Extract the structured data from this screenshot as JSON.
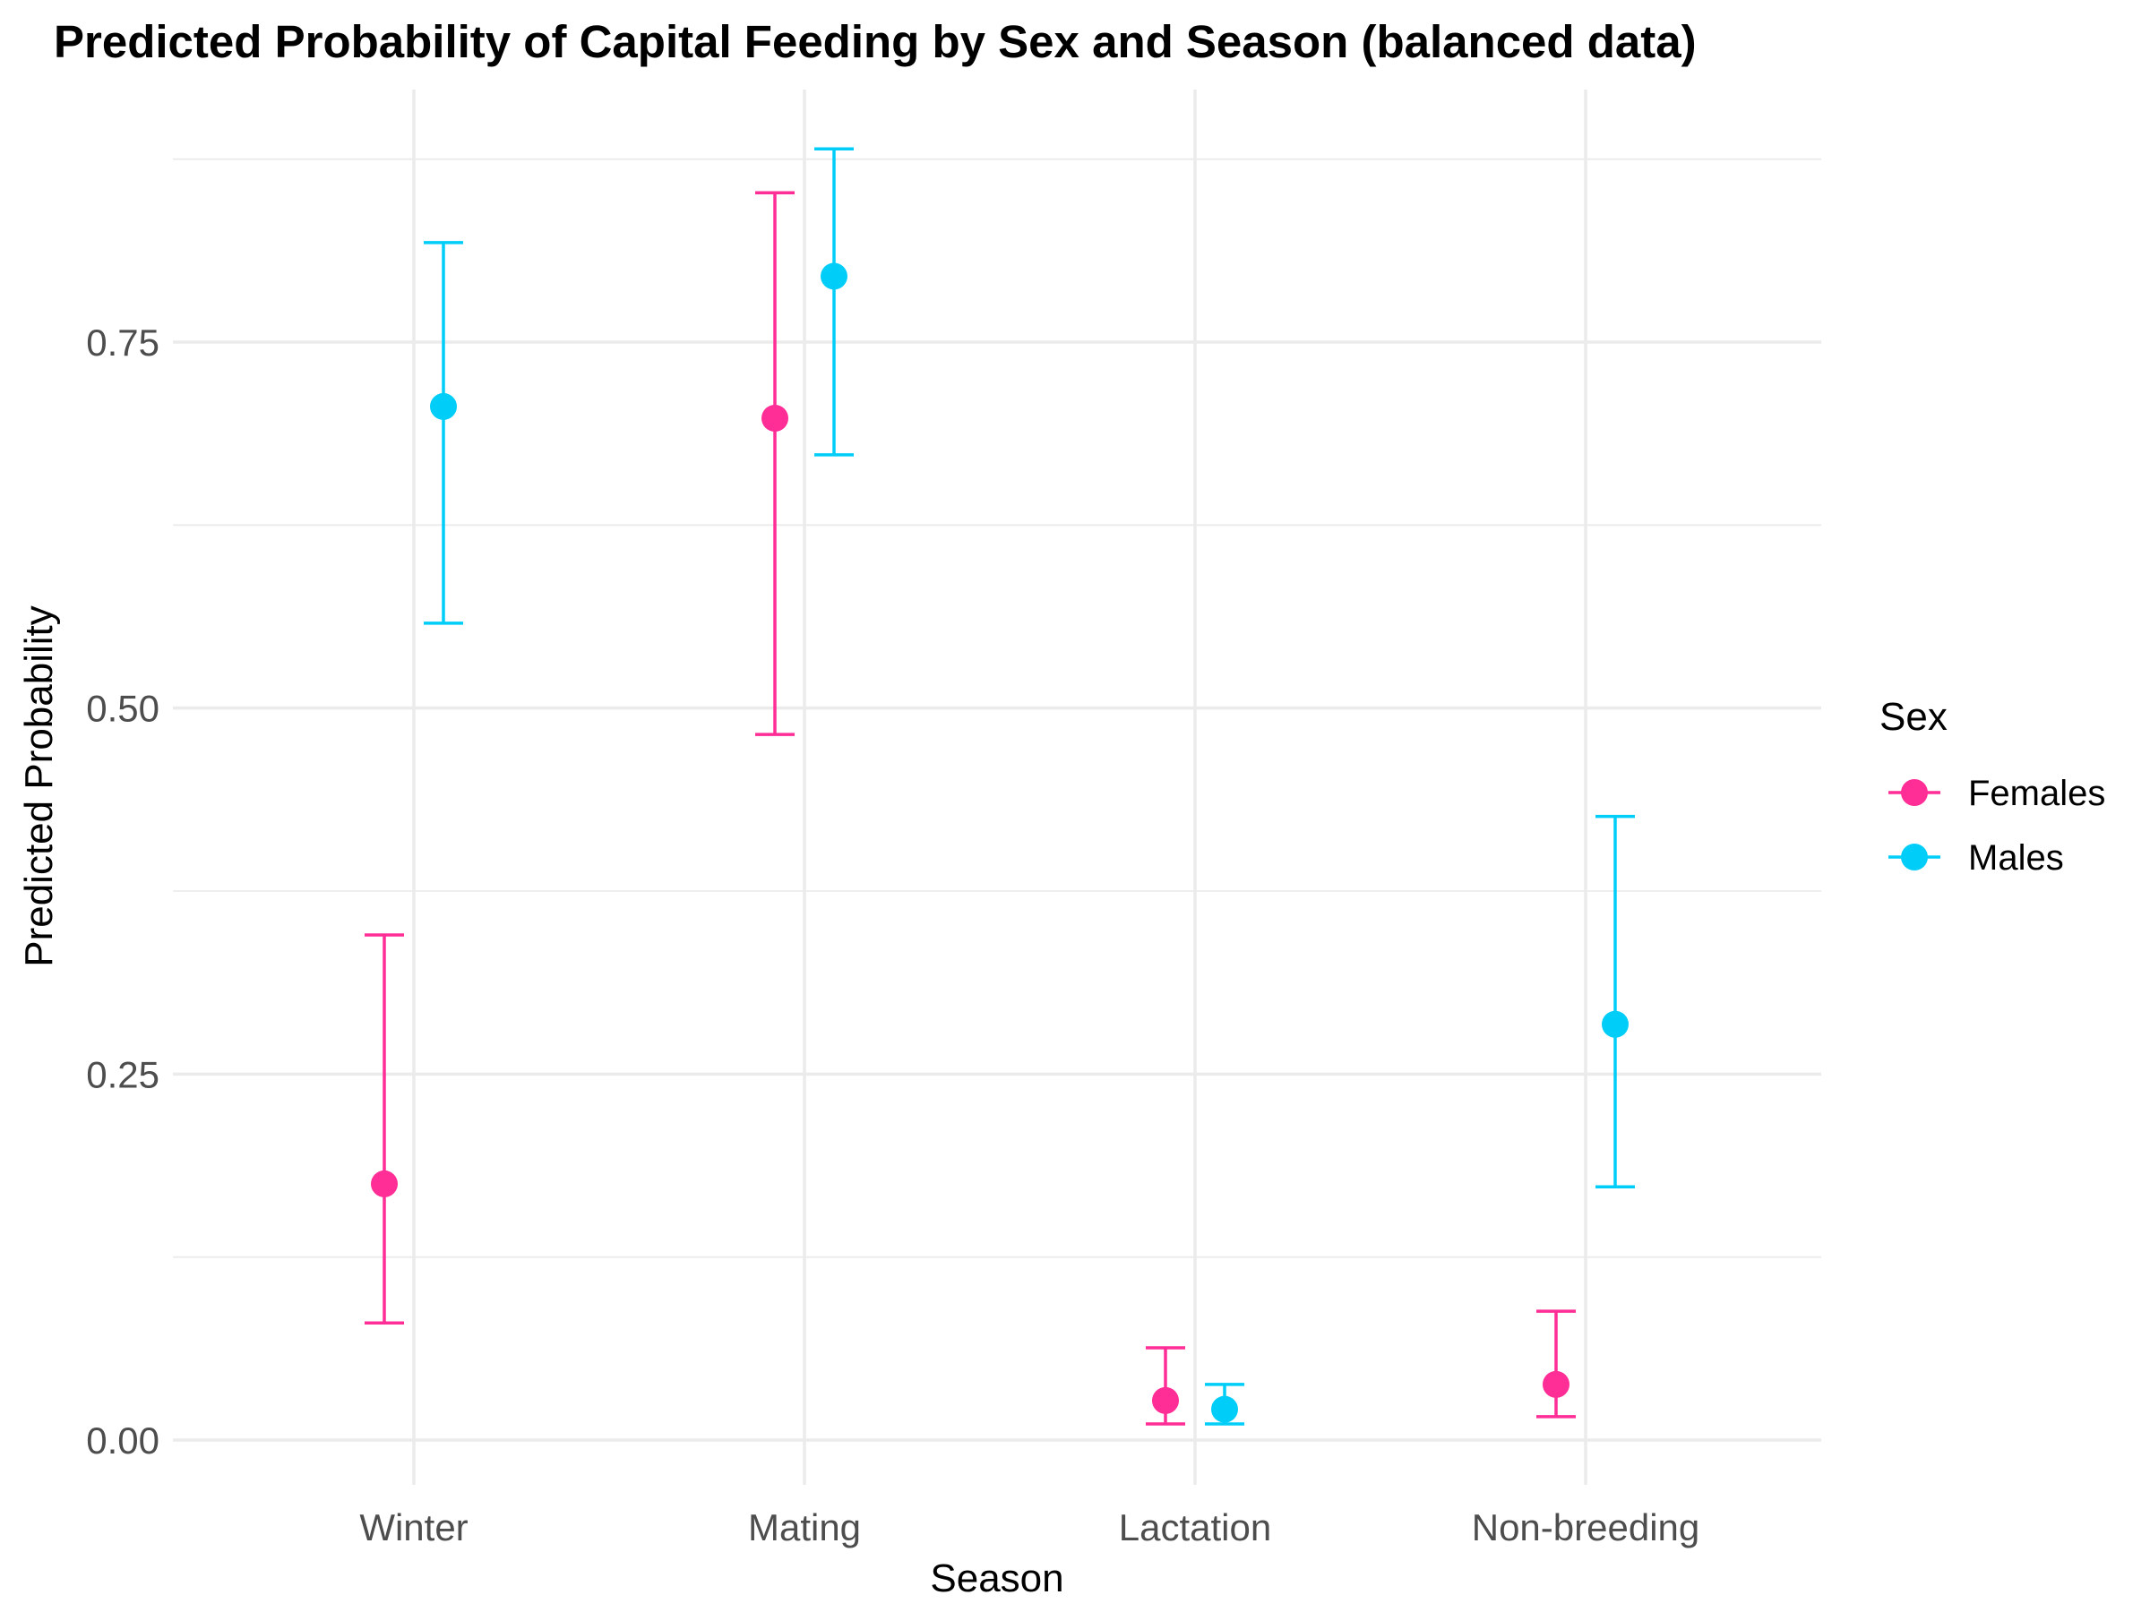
{
  "chart_data": {
    "type": "scatter",
    "title": "Predicted Probability of Capital Feeding by Sex and Season (balanced data)",
    "xlabel": "Season",
    "ylabel": "Predicted Probability",
    "categories": [
      "Winter",
      "Mating",
      "Lactation",
      "Non-breeding"
    ],
    "ylim": [
      -0.03,
      0.93
    ],
    "yticks": [
      0.0,
      0.25,
      0.5,
      0.75
    ],
    "ytick_labels": [
      "0.00",
      "0.25",
      "0.50",
      "0.75"
    ],
    "yminor": [
      0.125,
      0.375,
      0.625,
      0.875
    ],
    "grid": true,
    "legend": {
      "title": "Sex",
      "position": "right"
    },
    "series": [
      {
        "name": "Females",
        "color": "#ff2d96",
        "values": [
          0.175,
          0.698,
          0.027,
          0.038
        ],
        "lower": [
          0.08,
          0.482,
          0.011,
          0.016
        ],
        "upper": [
          0.345,
          0.852,
          0.063,
          0.088
        ]
      },
      {
        "name": "Males",
        "color": "#00cdf8",
        "values": [
          0.706,
          0.795,
          0.021,
          0.284
        ],
        "lower": [
          0.558,
          0.673,
          0.011,
          0.173
        ],
        "upper": [
          0.818,
          0.882,
          0.038,
          0.426
        ]
      }
    ]
  }
}
